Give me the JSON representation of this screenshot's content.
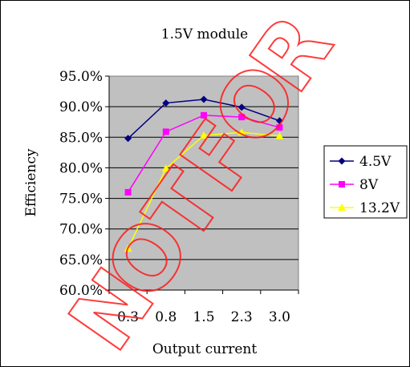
{
  "chart_data": {
    "type": "line",
    "title": "1.5V module",
    "xlabel": "Output current",
    "ylabel": "Efficiency",
    "categories": [
      "0.3",
      "0.8",
      "1.5",
      "2.3",
      "3.0"
    ],
    "y_ticks": [
      "60.0%",
      "65.0%",
      "70.0%",
      "75.0%",
      "80.0%",
      "85.0%",
      "90.0%",
      "95.0%"
    ],
    "ylim": [
      60,
      95
    ],
    "grid": true,
    "legend_position": "right",
    "series": [
      {
        "name": "4.5V",
        "values": [
          84.8,
          90.6,
          91.2,
          89.9,
          87.7
        ],
        "color": "#000080",
        "marker": "diamond"
      },
      {
        "name": "8V",
        "values": [
          76.0,
          85.9,
          88.6,
          88.3,
          86.6
        ],
        "color": "#ff00ff",
        "marker": "square"
      },
      {
        "name": "13.2V",
        "values": [
          66.8,
          79.9,
          85.3,
          85.8,
          85.2
        ],
        "color": "#ffff00",
        "marker": "triangle"
      }
    ],
    "plot_background": "#c0c0c0"
  },
  "watermark_text": "NOTFOR"
}
